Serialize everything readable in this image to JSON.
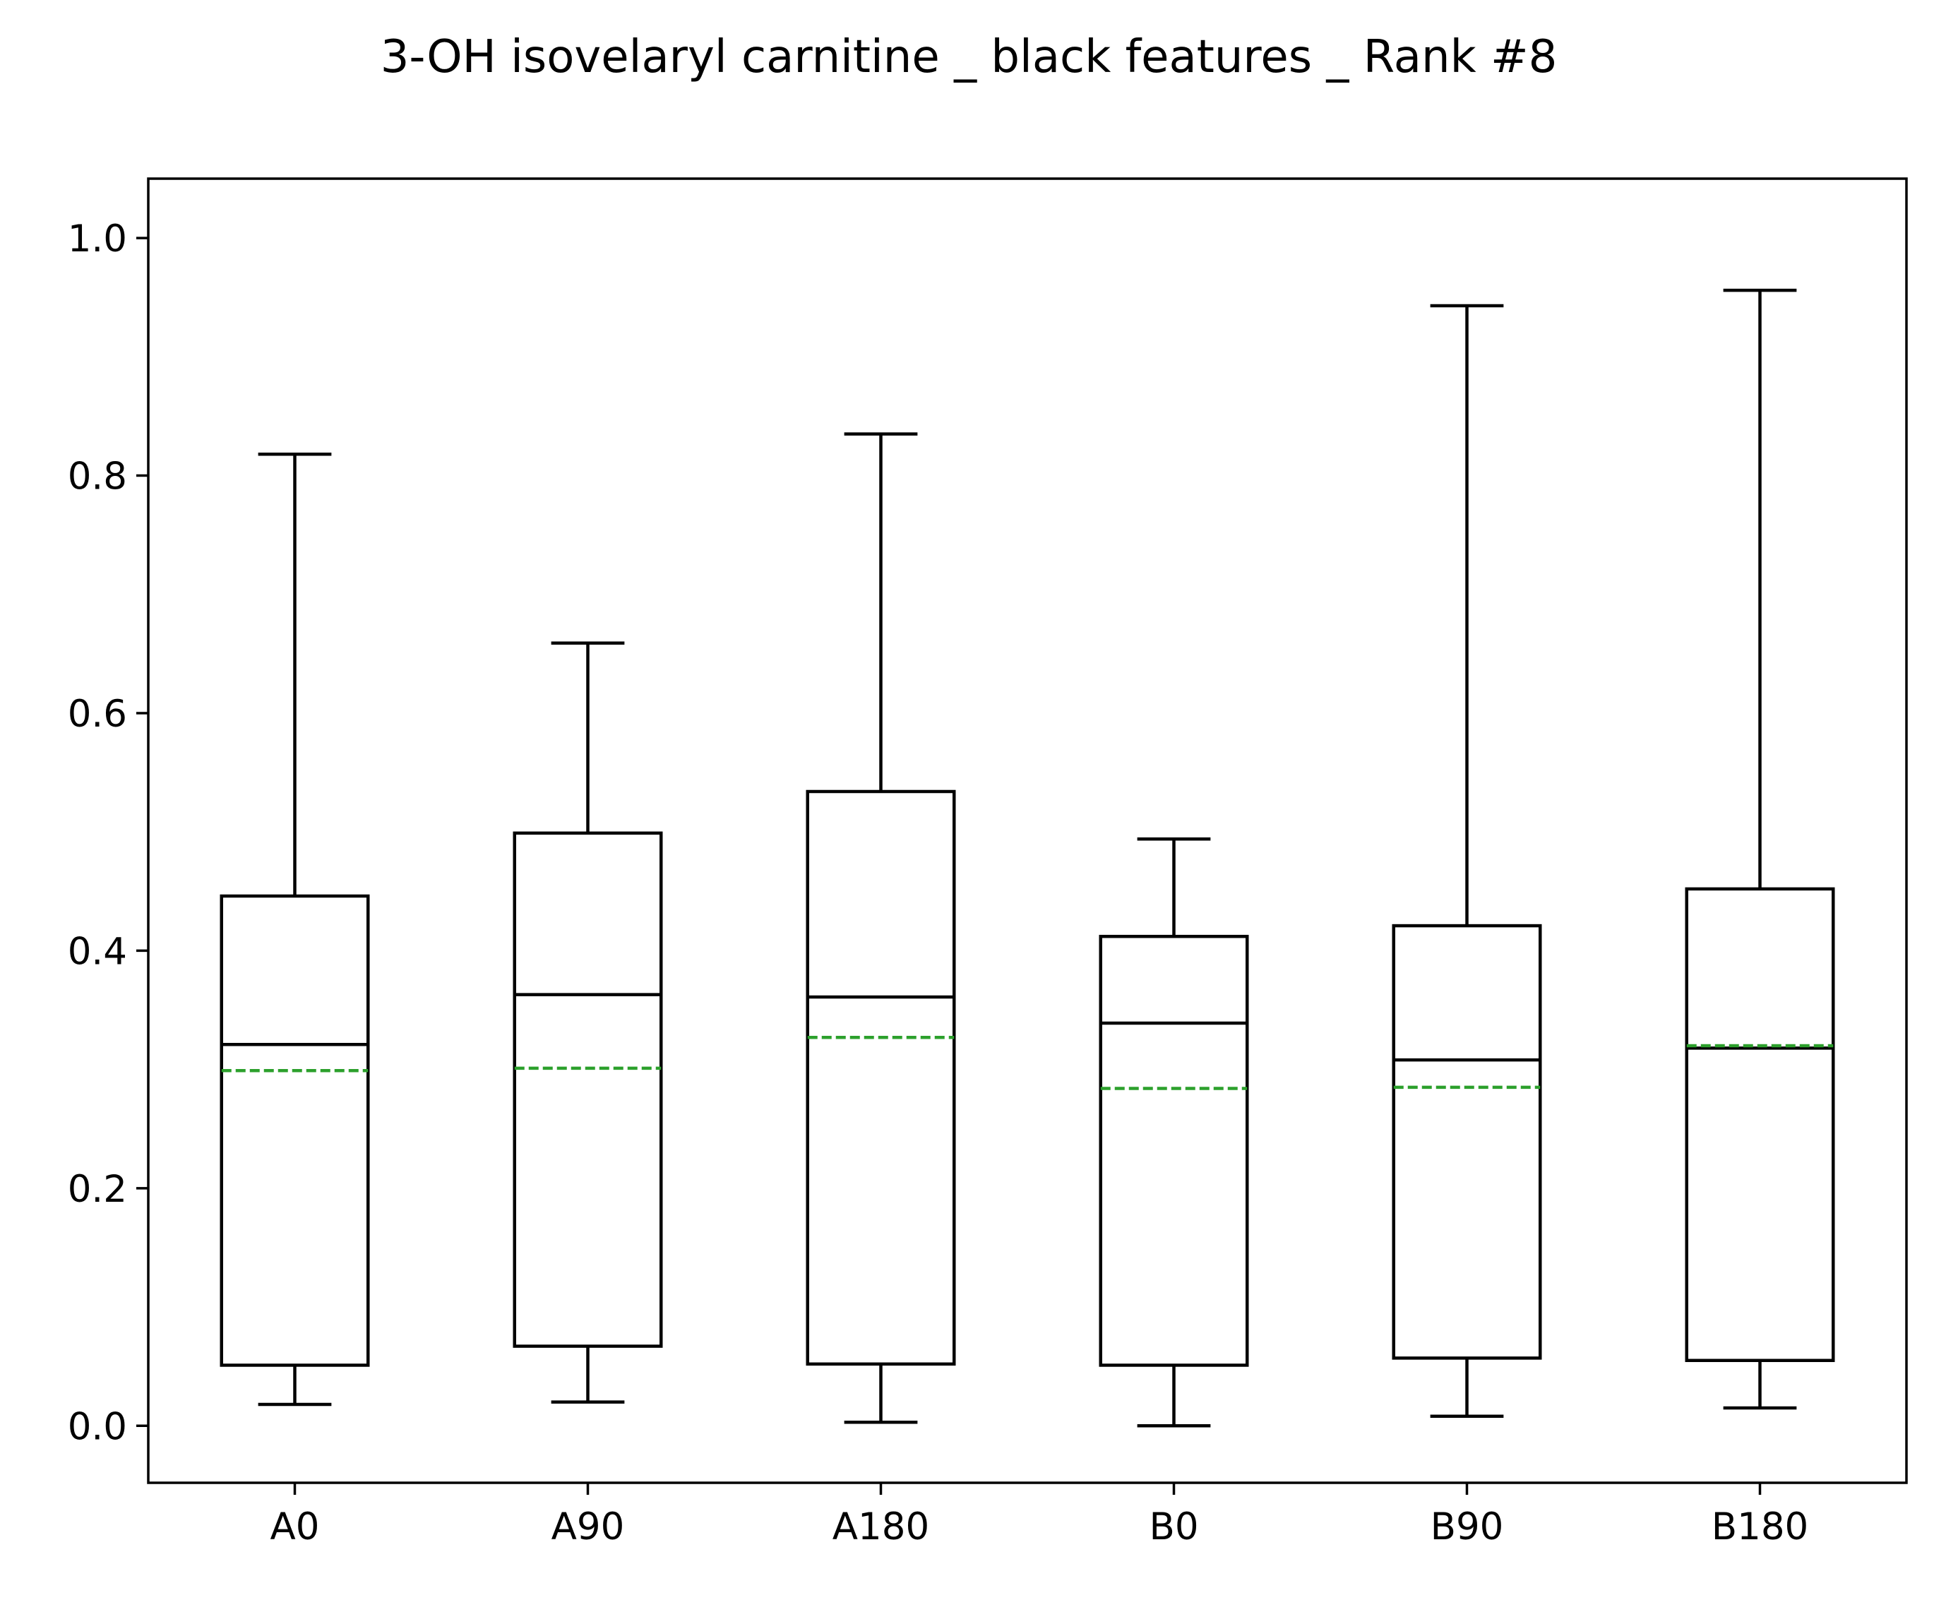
{
  "chart_data": {
    "type": "boxplot",
    "title": "3-OH isovelaryl carnitine _ black features _ Rank #8",
    "xlabel": "",
    "ylabel": "",
    "ylim": [
      -0.048,
      1.05
    ],
    "yticks": [
      "0.0",
      "0.2",
      "0.4",
      "0.6",
      "0.8",
      "1.0"
    ],
    "yticks_values": [
      0.0,
      0.2,
      0.4,
      0.6,
      0.8,
      1.0
    ],
    "grid": false,
    "categories": [
      "A0",
      "A90",
      "A180",
      "B0",
      "B90",
      "B180"
    ],
    "boxes": [
      {
        "whisker_low": 0.018,
        "q1": 0.051,
        "median": 0.321,
        "mean": 0.299,
        "q3": 0.446,
        "whisker_high": 0.818
      },
      {
        "whisker_low": 0.02,
        "q1": 0.067,
        "median": 0.363,
        "mean": 0.301,
        "q3": 0.499,
        "whisker_high": 0.659
      },
      {
        "whisker_low": 0.003,
        "q1": 0.052,
        "median": 0.361,
        "mean": 0.327,
        "q3": 0.534,
        "whisker_high": 0.835
      },
      {
        "whisker_low": 0.0,
        "q1": 0.051,
        "median": 0.339,
        "mean": 0.284,
        "q3": 0.412,
        "whisker_high": 0.494
      },
      {
        "whisker_low": 0.008,
        "q1": 0.057,
        "median": 0.308,
        "mean": 0.285,
        "q3": 0.421,
        "whisker_high": 0.943
      },
      {
        "whisker_low": 0.015,
        "q1": 0.055,
        "median": 0.318,
        "mean": 0.32,
        "q3": 0.452,
        "whisker_high": 0.956
      }
    ],
    "colors": {
      "box": "#000000",
      "mean_line": "#2ca02c"
    }
  }
}
